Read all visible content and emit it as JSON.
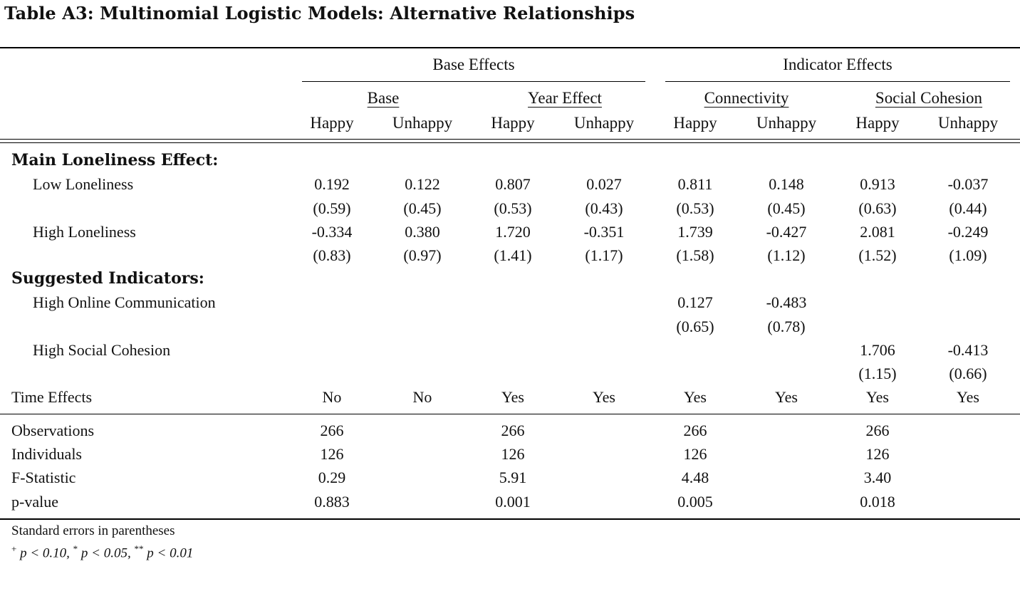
{
  "title": "Table A3: Multinomial Logistic Models: Alternative Relationships",
  "groups": [
    "Base Effects",
    "Indicator Effects"
  ],
  "models": [
    "Base",
    "Year Effect",
    "Connectivity",
    "Social Cohesion"
  ],
  "columns": [
    "Happy",
    "Unhappy",
    "Happy",
    "Unhappy",
    "Happy",
    "Unhappy",
    "Happy",
    "Unhappy"
  ],
  "sections": [
    {
      "heading": "Main Loneliness Effect:",
      "rows": [
        {
          "label": "Low Loneliness",
          "coef": [
            "0.192",
            "0.122",
            "0.807",
            "0.027",
            "0.811",
            "0.148",
            "0.913",
            "-0.037"
          ],
          "se": [
            "(0.59)",
            "(0.45)",
            "(0.53)",
            "(0.43)",
            "(0.53)",
            "(0.45)",
            "(0.63)",
            "(0.44)"
          ]
        },
        {
          "label": "High Loneliness",
          "coef": [
            "-0.334",
            "0.380",
            "1.720",
            "-0.351",
            "1.739",
            "-0.427",
            "2.081",
            "-0.249"
          ],
          "se": [
            "(0.83)",
            "(0.97)",
            "(1.41)",
            "(1.17)",
            "(1.58)",
            "(1.12)",
            "(1.52)",
            "(1.09)"
          ]
        }
      ]
    },
    {
      "heading": "Suggested Indicators:",
      "rows": [
        {
          "label": "High Online Communication",
          "coef": [
            "",
            "",
            "",
            "",
            "0.127",
            "-0.483",
            "",
            ""
          ],
          "se": [
            "",
            "",
            "",
            "",
            "(0.65)",
            "(0.78)",
            "",
            ""
          ]
        },
        {
          "label": "High Social Cohesion",
          "coef": [
            "",
            "",
            "",
            "",
            "",
            "",
            "1.706",
            "-0.413"
          ],
          "se": [
            "",
            "",
            "",
            "",
            "",
            "",
            "(1.15)",
            "(0.66)"
          ]
        }
      ]
    }
  ],
  "time_effects": {
    "label": "Time Effects",
    "values": [
      "No",
      "No",
      "Yes",
      "Yes",
      "Yes",
      "Yes",
      "Yes",
      "Yes"
    ]
  },
  "stats": [
    {
      "label": "Observations",
      "values": [
        "266",
        "266",
        "266",
        "266"
      ]
    },
    {
      "label": "Individuals",
      "values": [
        "126",
        "126",
        "126",
        "126"
      ]
    },
    {
      "label": "F-Statistic",
      "values": [
        "0.29",
        "5.91",
        "4.48",
        "3.40"
      ]
    },
    {
      "label": "p-value",
      "values": [
        "0.883",
        "0.001",
        "0.005",
        "0.018"
      ]
    }
  ],
  "notes": {
    "line1": "Standard errors in parentheses",
    "sig1": "+",
    "p1": "p < 0.10,",
    "sig2": "*",
    "p2": "p < 0.05,",
    "sig3": "**",
    "p3": "p < 0.01"
  }
}
